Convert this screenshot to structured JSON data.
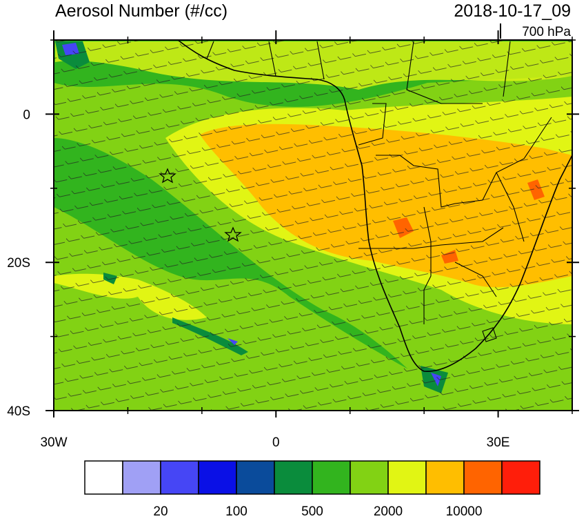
{
  "chart_data": {
    "type": "map",
    "title": "Aerosol Number (#/cc)",
    "date": "2018-10-17_09",
    "level": "700 hPa",
    "xlim": [
      -30,
      40
    ],
    "ylim": [
      -40,
      10
    ],
    "xticks": [
      {
        "value": -30,
        "label": "30W"
      },
      0,
      {
        "value": 30,
        "label": "30E"
      }
    ],
    "xminor": [
      -20,
      -10,
      10,
      20,
      40
    ],
    "yticks": [
      0,
      {
        "value": -20,
        "label": "20S"
      },
      {
        "value": -40,
        "label": "40S"
      }
    ],
    "yminor": [
      10,
      -10,
      -30
    ],
    "colorbar_colors": [
      "#ffffff",
      "#a0a0f5",
      "#4646f5",
      "#0a10e6",
      "#0a4b9b",
      "#0a8c3c",
      "#32b41e",
      "#82d214",
      "#e1f514",
      "#ffbe00",
      "#ff6400",
      "#ff1e0a"
    ],
    "colorbar_labels": [
      20,
      100,
      500,
      2000,
      10000
    ]
  }
}
